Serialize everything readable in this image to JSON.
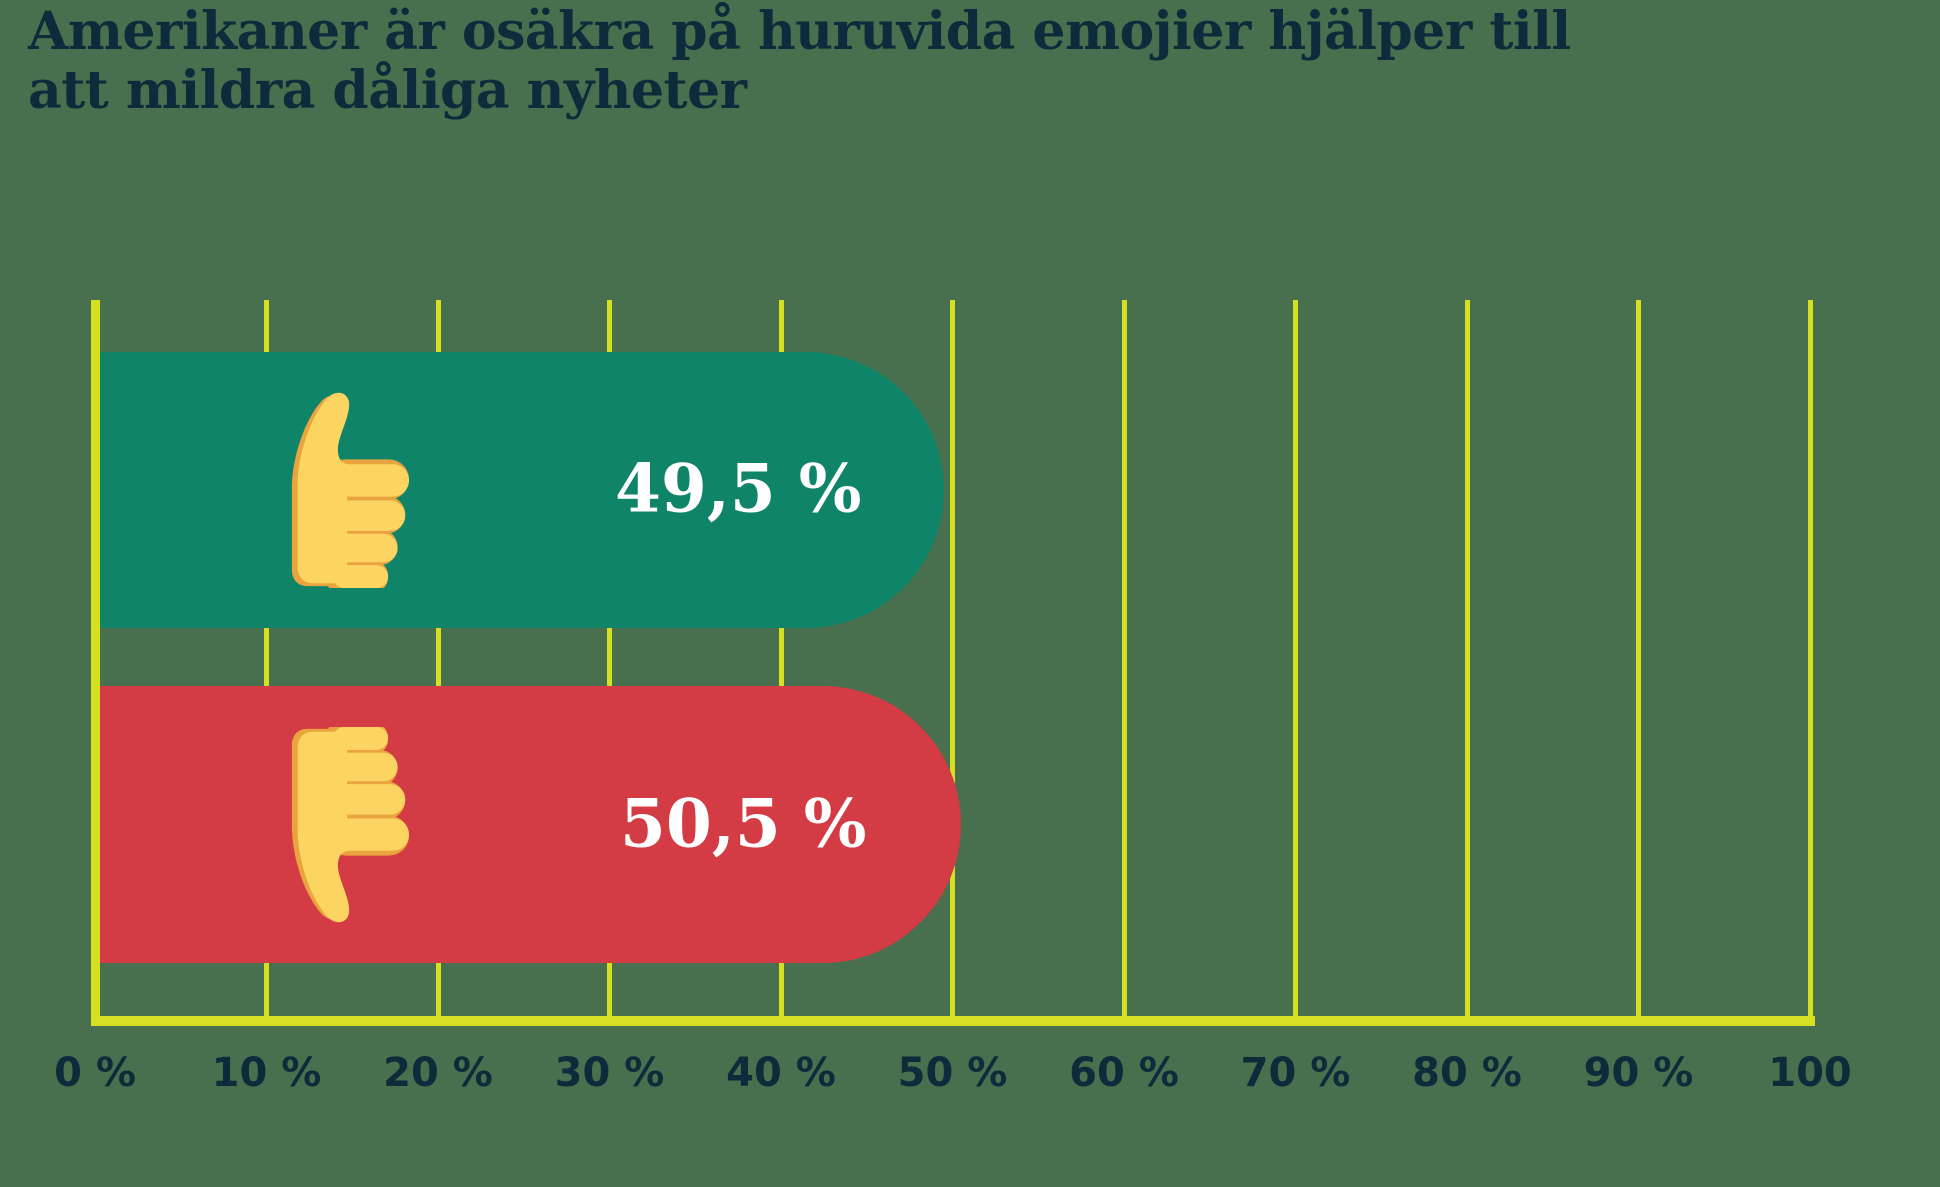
{
  "title": "Amerikaner är osäkra på huruvida emojier hjälper till att mildra dåliga nyheter",
  "chart_data": {
    "type": "bar",
    "orientation": "horizontal",
    "title": "Amerikaner är osäkra på huruvida emojier hjälper till att mildra dåliga nyheter",
    "categories": [
      "thumbs-up",
      "thumbs-down"
    ],
    "values": [
      49.5,
      50.5
    ],
    "value_labels": [
      "49,5 %",
      "50,5 %"
    ],
    "xlabel": "",
    "ylabel": "",
    "xlim": [
      0,
      100
    ],
    "x_tick_labels": [
      "0 %",
      "10 %",
      "20 %",
      "30 %",
      "40 %",
      "50 %",
      "60 %",
      "70 %",
      "80 %",
      "90 %",
      "100"
    ],
    "grid": true,
    "legend": false,
    "bar_colors": [
      "#108468",
      "#D43C45"
    ]
  },
  "bars": [
    {
      "label": "49,5 %",
      "value": 49.5,
      "color": "#108468",
      "icon": "thumbs-up-emoji"
    },
    {
      "label": "50,5 %",
      "value": 50.5,
      "color": "#D43C45",
      "icon": "thumbs-down-emoji"
    }
  ],
  "axis": {
    "ticks": [
      "0 %",
      "10 %",
      "20 %",
      "30 %",
      "40 %",
      "50 %",
      "60 %",
      "70 %",
      "80 %",
      "90 %",
      "100"
    ]
  },
  "colors": {
    "background": "#48704E",
    "grid": "#D6DF21",
    "title_text": "#0D2B3A",
    "value_text": "#FFFFFF",
    "bar_positive": "#108468",
    "bar_negative": "#D43C45",
    "emoji_main": "#FCD462",
    "emoji_shade": "#E9A43D"
  }
}
